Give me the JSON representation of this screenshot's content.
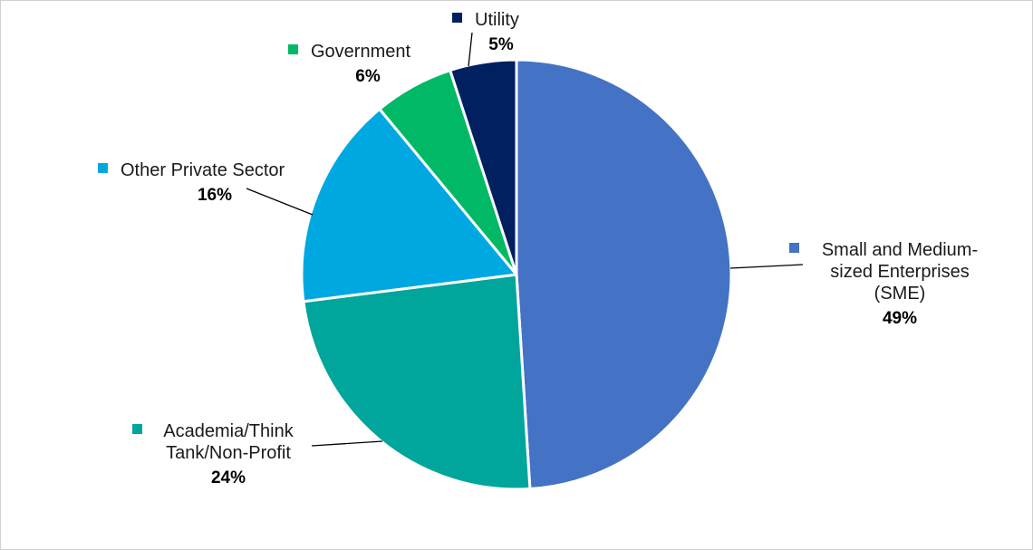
{
  "chart_data": {
    "type": "pie",
    "title": "",
    "slices": [
      {
        "label": "Small and Medium-sized Enterprises (SME)",
        "lines": [
          "Small and Medium-",
          "sized Enterprises",
          "(SME)"
        ],
        "value": 49,
        "value_label": "49%",
        "color": "#4472C4"
      },
      {
        "label": "Academia/Think Tank/Non-Profit",
        "lines": [
          "Academia/Think",
          "Tank/Non-Profit"
        ],
        "value": 24,
        "value_label": "24%",
        "color": "#00A59B"
      },
      {
        "label": "Other Private Sector",
        "lines": [
          "Other Private Sector"
        ],
        "value": 16,
        "value_label": "16%",
        "color": "#00A8E1"
      },
      {
        "label": "Government",
        "lines": [
          "Government"
        ],
        "value": 6,
        "value_label": "6%",
        "color": "#00B866"
      },
      {
        "label": "Utility",
        "lines": [
          "Utility"
        ],
        "value": 5,
        "value_label": "5%",
        "color": "#002060"
      }
    ],
    "start": "12 o'clock",
    "direction": "clockwise",
    "legend": "labels outside with leader lines"
  }
}
